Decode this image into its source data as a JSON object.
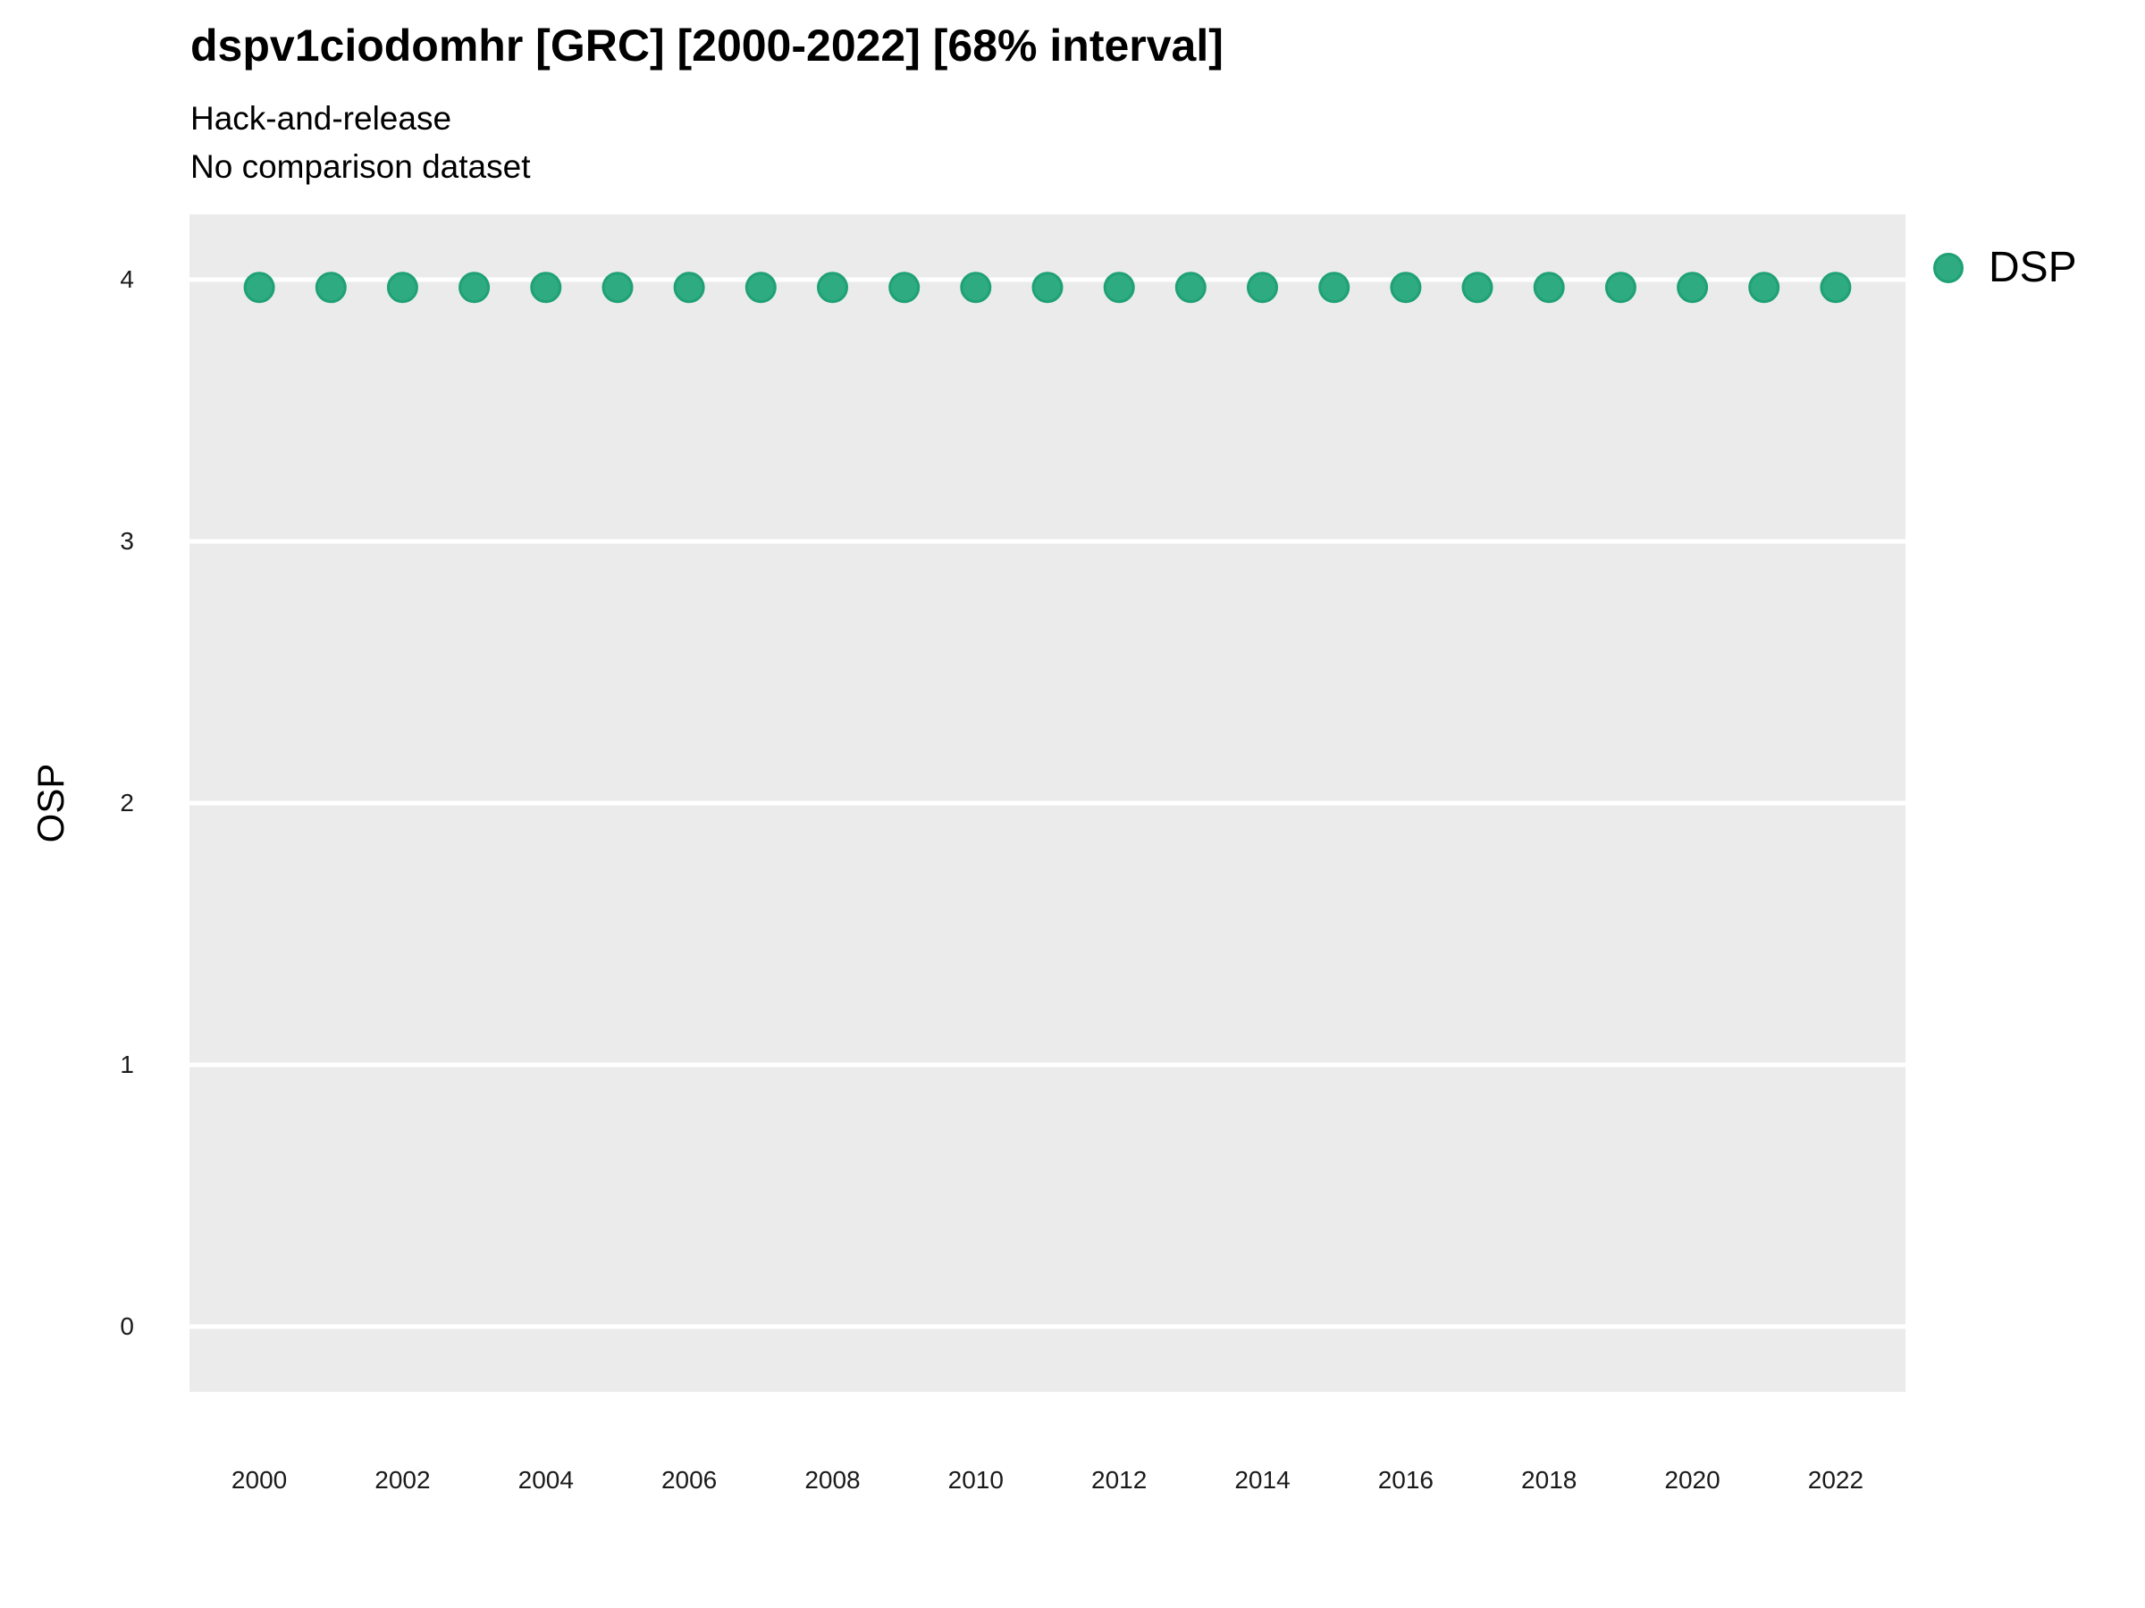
{
  "figure": {
    "title": "dspv1ciodomhr [GRC] [2000-2022] [68% interval]",
    "subtitle1": "Hack-and-release",
    "subtitle2": "No comparison dataset"
  },
  "legend": {
    "label": "DSP"
  },
  "colors": {
    "point_fill": "#2EAB80",
    "point_stroke": "#1FA175",
    "panel_bg": "#EBEBEB",
    "gridline": "#FFFFFF",
    "text": "#000000",
    "tick_text": "#1A1A1A"
  },
  "chart_data": {
    "type": "scatter",
    "title": "dspv1ciodomhr [GRC] [2000-2022] [68% interval]",
    "subtitle": [
      "Hack-and-release",
      "No comparison dataset"
    ],
    "xlabel": "",
    "ylabel": "OSP",
    "legend_position": "right",
    "grid": "horizontal major gridlines, white on gray panel",
    "x_ticks": [
      2000,
      2002,
      2004,
      2006,
      2008,
      2010,
      2012,
      2014,
      2016,
      2018,
      2020,
      2022
    ],
    "y_ticks": [
      0,
      1,
      2,
      3,
      4
    ],
    "xlim": [
      1999.026,
      2022.974
    ],
    "ylim": [
      -0.249,
      4.249
    ],
    "series": [
      {
        "name": "DSP",
        "color": "#2EAB80",
        "x": [
          2000,
          2001,
          2002,
          2003,
          2004,
          2005,
          2006,
          2007,
          2008,
          2009,
          2010,
          2011,
          2012,
          2013,
          2014,
          2015,
          2016,
          2017,
          2018,
          2019,
          2020,
          2021,
          2022
        ],
        "y": [
          3.97,
          3.97,
          3.97,
          3.97,
          3.97,
          3.97,
          3.97,
          3.97,
          3.97,
          3.97,
          3.97,
          3.97,
          3.97,
          3.97,
          3.97,
          3.97,
          3.97,
          3.97,
          3.97,
          3.97,
          3.97,
          3.97,
          3.97
        ]
      }
    ]
  }
}
